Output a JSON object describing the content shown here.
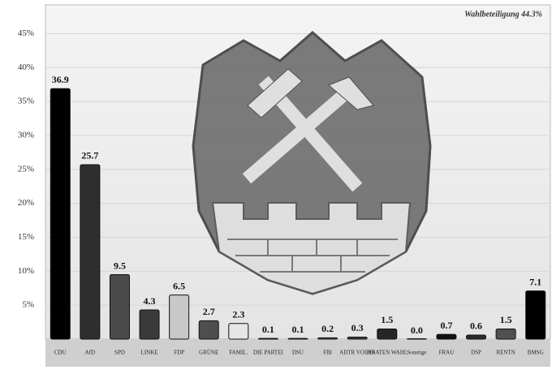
{
  "chart_data": {
    "type": "bar",
    "title": "Wahlbeteiligung 44.3%",
    "categories": [
      "CDU",
      "AfD",
      "SPD",
      "LINKE",
      "FDP",
      "GRÜNE",
      "FAMIL.",
      "DIE PARTEI",
      "DSU",
      "FBI",
      "ADTR VOLKS",
      "PIRATEN WAHL",
      "Sonstige",
      "FRAU",
      "DSP",
      "RENTN",
      "BMSG"
    ],
    "values": [
      36.9,
      25.7,
      9.5,
      4.3,
      6.5,
      2.7,
      2.3,
      0.1,
      0.1,
      0.2,
      0.3,
      1.5,
      0.0,
      0.7,
      0.6,
      1.5,
      7.1
    ],
    "value_labels": [
      "36.9",
      "25.7",
      "9.5",
      "4.3",
      "6.5",
      "2.7",
      "2.3",
      "0.1",
      "0.1",
      "0.2",
      "0.3",
      "1.5",
      "0.0",
      "0.7",
      "0.6",
      "1.5",
      "7.1"
    ],
    "colors": [
      "#000000",
      "#2e2e2e",
      "#4a4a4a",
      "#3a3a3a",
      "#c8c8c8",
      "#4e4e4e",
      "#e6e6e6",
      "#3c3c3c",
      "#5a5a5a",
      "#5a5a5a",
      "#3c3c3c",
      "#262626",
      "#777777",
      "#111111",
      "#2a2a2a",
      "#505050",
      "#000000"
    ],
    "ylim": [
      0,
      49
    ],
    "yticks": [
      {
        "value": 5,
        "label": "5%"
      },
      {
        "value": 10,
        "label": "10%"
      },
      {
        "value": 15,
        "label": "15%"
      },
      {
        "value": 20,
        "label": "20%"
      },
      {
        "value": 25,
        "label": "25%"
      },
      {
        "value": 30,
        "label": "30%"
      },
      {
        "value": 35,
        "label": "35%"
      },
      {
        "value": 40,
        "label": "40%"
      },
      {
        "value": 45,
        "label": "45%"
      }
    ],
    "grid": true
  }
}
